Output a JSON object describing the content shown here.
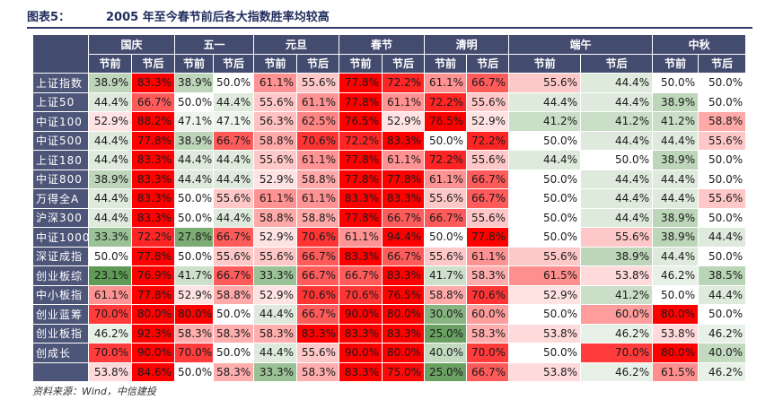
{
  "title": {
    "label": "图表5：",
    "text": "2005 年至今春节前后各大指数胜率均较高"
  },
  "holidays": [
    "国庆",
    "五一",
    "元旦",
    "春节",
    "清明",
    "端午",
    "中秋"
  ],
  "sub_headers": [
    "节前",
    "节后"
  ],
  "rows": [
    {
      "name": "上证指数",
      "values": [
        "38.9%",
        "83.3%",
        "38.9%",
        "50.0%",
        "61.1%",
        "55.6%",
        "77.8%",
        "72.2%",
        "61.1%",
        "66.7%",
        "55.6%",
        "44.4%",
        "50.0%",
        "50.0%"
      ]
    },
    {
      "name": "上证50",
      "values": [
        "44.4%",
        "66.7%",
        "50.0%",
        "44.4%",
        "55.6%",
        "61.1%",
        "77.8%",
        "61.1%",
        "72.2%",
        "55.6%",
        "44.4%",
        "44.4%",
        "38.9%",
        "50.0%"
      ]
    },
    {
      "name": "中证100",
      "values": [
        "52.9%",
        "88.2%",
        "47.1%",
        "47.1%",
        "56.3%",
        "62.5%",
        "76.5%",
        "52.9%",
        "76.5%",
        "52.9%",
        "41.2%",
        "41.2%",
        "41.2%",
        "58.8%"
      ]
    },
    {
      "name": "中证500",
      "values": [
        "44.4%",
        "77.8%",
        "38.9%",
        "66.7%",
        "58.8%",
        "70.6%",
        "72.2%",
        "83.3%",
        "50.0%",
        "72.2%",
        "50.0%",
        "44.4%",
        "44.4%",
        "55.6%"
      ]
    },
    {
      "name": "上证180",
      "values": [
        "44.4%",
        "83.3%",
        "44.4%",
        "44.4%",
        "55.6%",
        "61.1%",
        "77.8%",
        "61.1%",
        "72.2%",
        "55.6%",
        "44.4%",
        "50.0%",
        "38.9%",
        "50.0%"
      ]
    },
    {
      "name": "中证800",
      "values": [
        "38.9%",
        "83.3%",
        "44.4%",
        "44.4%",
        "52.9%",
        "58.8%",
        "77.8%",
        "77.8%",
        "61.1%",
        "66.7%",
        "50.0%",
        "44.4%",
        "44.4%",
        "50.0%"
      ]
    },
    {
      "name": "万得全A",
      "values": [
        "44.4%",
        "83.3%",
        "50.0%",
        "55.6%",
        "61.1%",
        "61.1%",
        "83.3%",
        "83.3%",
        "55.6%",
        "66.7%",
        "50.0%",
        "44.4%",
        "44.4%",
        "55.6%"
      ]
    },
    {
      "name": "沪深300",
      "values": [
        "44.4%",
        "83.3%",
        "50.0%",
        "44.4%",
        "58.8%",
        "58.8%",
        "77.8%",
        "66.7%",
        "66.7%",
        "55.6%",
        "50.0%",
        "44.4%",
        "38.9%",
        "50.0%"
      ]
    },
    {
      "name": "中证1000",
      "values": [
        "33.3%",
        "72.2%",
        "27.8%",
        "66.7%",
        "52.9%",
        "70.6%",
        "61.1%",
        "94.4%",
        "50.0%",
        "77.8%",
        "50.0%",
        "55.6%",
        "38.9%",
        "44.4%"
      ]
    },
    {
      "name": "深证成指",
      "values": [
        "50.0%",
        "77.8%",
        "50.0%",
        "55.6%",
        "55.6%",
        "66.7%",
        "83.3%",
        "66.7%",
        "55.6%",
        "61.1%",
        "55.6%",
        "38.9%",
        "44.4%",
        "50.0%"
      ]
    },
    {
      "name": "创业板综",
      "values": [
        "23.1%",
        "76.9%",
        "41.7%",
        "66.7%",
        "33.3%",
        "66.7%",
        "66.7%",
        "83.3%",
        "41.7%",
        "58.3%",
        "61.5%",
        "53.8%",
        "46.2%",
        "38.5%"
      ]
    },
    {
      "name": "中小板指",
      "values": [
        "61.1%",
        "77.8%",
        "52.9%",
        "58.8%",
        "52.9%",
        "70.6%",
        "70.6%",
        "76.5%",
        "58.8%",
        "70.6%",
        "52.9%",
        "41.2%",
        "50.0%",
        "44.4%"
      ]
    },
    {
      "name": "创业蓝筹",
      "values": [
        "70.0%",
        "80.0%",
        "80.0%",
        "50.0%",
        "44.4%",
        "66.7%",
        "90.0%",
        "80.0%",
        "30.0%",
        "60.0%",
        "50.0%",
        "60.0%",
        "80.0%",
        "50.0%"
      ]
    },
    {
      "name": "创业板指",
      "values": [
        "46.2%",
        "92.3%",
        "58.3%",
        "58.3%",
        "58.3%",
        "83.3%",
        "83.3%",
        "83.3%",
        "25.0%",
        "58.3%",
        "53.8%",
        "46.2%",
        "53.8%",
        "46.2%"
      ]
    },
    {
      "name": "创成长",
      "values": [
        "70.0%",
        "90.0%",
        "70.0%",
        "50.0%",
        "44.4%",
        "55.6%",
        "90.0%",
        "80.0%",
        "40.0%",
        "70.0%",
        "50.0%",
        "70.0%",
        "80.0%",
        "40.0%"
      ]
    },
    {
      "name": "",
      "values": [
        "53.8%",
        "84.6%",
        "50.0%",
        "58.3%",
        "33.3%",
        "58.3%",
        "83.3%",
        "75.0%",
        "25.0%",
        "66.7%",
        "53.8%",
        "46.2%",
        "61.5%",
        "46.2%"
      ]
    }
  ],
  "colors": {
    "header": "#434b6e",
    "low": "#5e9a55",
    "mid": "#ffffff",
    "high": "#ff0000"
  },
  "source": "资料来源：Wind，中信建投"
}
